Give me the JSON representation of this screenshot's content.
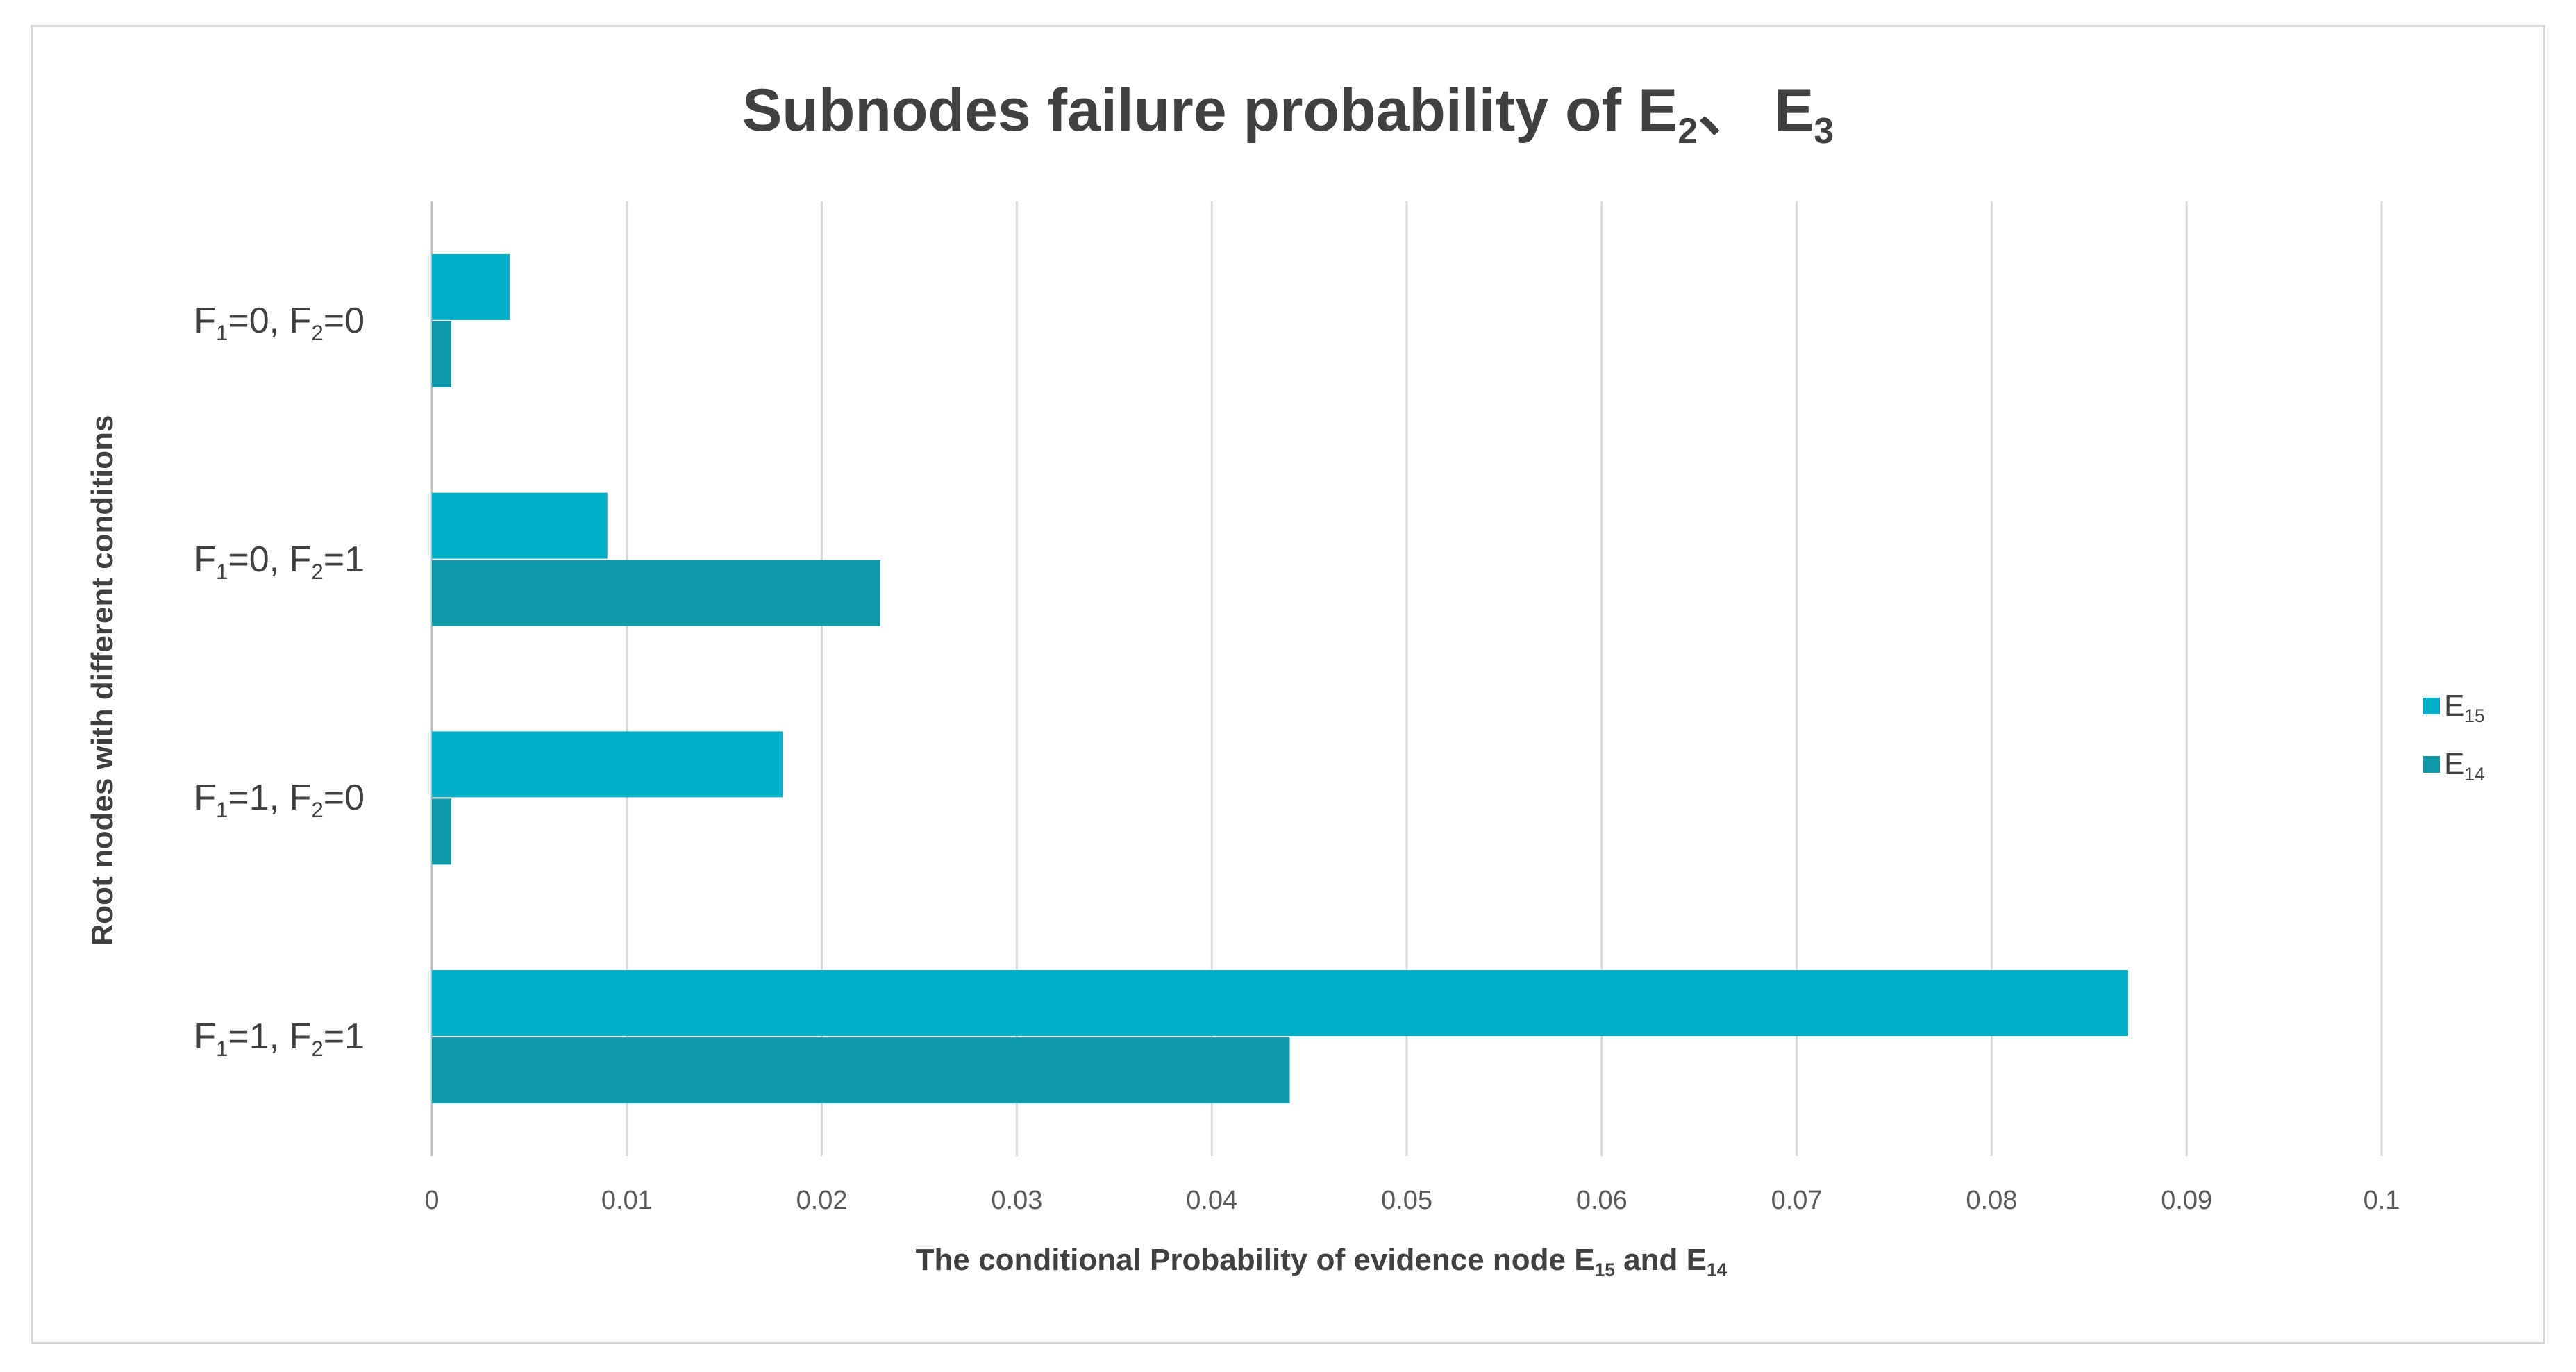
{
  "chart_data": {
    "type": "bar",
    "orientation": "horizontal",
    "title": {
      "main": "Subnodes failure probability of E",
      "sub1": "2",
      "sep": "、 E",
      "sub2": "3"
    },
    "xlabel": {
      "pre": "The conditional Probability of evidence node E",
      "sub1": "15",
      "mid": " and E",
      "sub2": "14"
    },
    "ylabel": "Root nodes with different conditions",
    "categories": [
      {
        "a": "F",
        "as": "1",
        "av": "=0, ",
        "b": "F",
        "bs": "2",
        "bv": "=0"
      },
      {
        "a": "F",
        "as": "1",
        "av": "=0, ",
        "b": "F",
        "bs": "2",
        "bv": "=1"
      },
      {
        "a": "F",
        "as": "1",
        "av": "=1, ",
        "b": "F",
        "bs": "2",
        "bv": "=0"
      },
      {
        "a": "F",
        "as": "1",
        "av": "=1, ",
        "b": "F",
        "bs": "2",
        "bv": "=1"
      }
    ],
    "series": [
      {
        "name": "E",
        "sub": "15",
        "color": "#00b0c8",
        "values": [
          0.004,
          0.009,
          0.018,
          0.087
        ]
      },
      {
        "name": "E",
        "sub": "14",
        "color": "#0f9aaa",
        "values": [
          0.001,
          0.023,
          0.001,
          0.044
        ]
      }
    ],
    "xlim": [
      0,
      0.1
    ],
    "xticks": [
      "0",
      "0.01",
      "0.02",
      "0.03",
      "0.04",
      "0.05",
      "0.06",
      "0.07",
      "0.08",
      "0.09",
      "0.1"
    ],
    "grid": "vertical",
    "legend_position": "right"
  }
}
